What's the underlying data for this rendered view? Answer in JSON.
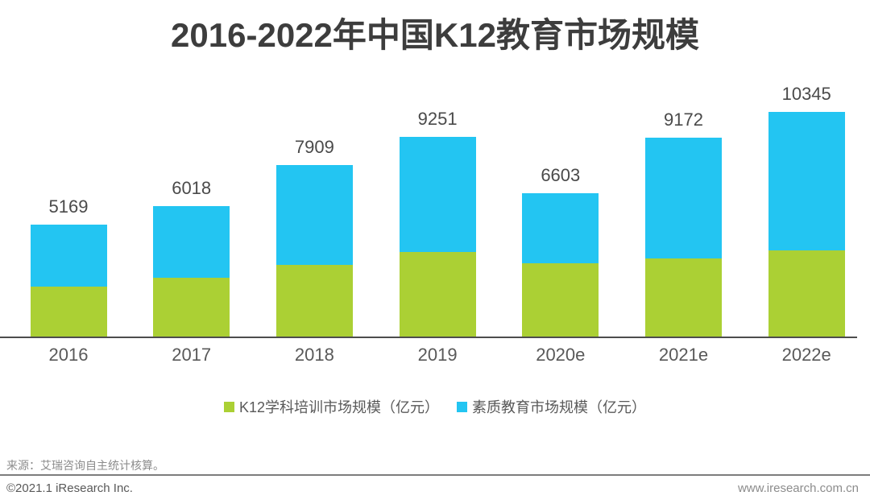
{
  "title": "2016-2022年中国K12教育市场规模",
  "chart_data": {
    "type": "bar",
    "stacked": true,
    "title": "2016-2022年中国K12教育市场规模",
    "categories": [
      "2016",
      "2017",
      "2018",
      "2019",
      "2020e",
      "2021e",
      "2022e"
    ],
    "totals": [
      5169,
      6018,
      7909,
      9251,
      6603,
      9172,
      10345
    ],
    "series": [
      {
        "name": "K12学科培训市场规模（亿元）",
        "color": "#abd034",
        "values": [
          2310,
          2712,
          3311,
          3920,
          3369,
          3609,
          3963
        ]
      },
      {
        "name": "素质教育市场规模（亿元）",
        "color": "#23c5f2",
        "values": [
          2859,
          3306,
          4598,
          5331,
          3234,
          5563,
          6382
        ]
      }
    ],
    "value_labels": "totals shown above each bar",
    "xlabel": "",
    "ylabel": "",
    "ylim": [
      0,
      10345
    ],
    "grid": false,
    "legend_position": "bottom",
    "axis_line_color": "#4d4d4d",
    "note": "series values estimated from pixel heights; totals are labeled on chart"
  },
  "footer": {
    "source": "来源：艾瑞咨询自主统计核算。",
    "copyright": "©2021.1 iResearch Inc.",
    "website": "www.iresearch.com.cn"
  }
}
